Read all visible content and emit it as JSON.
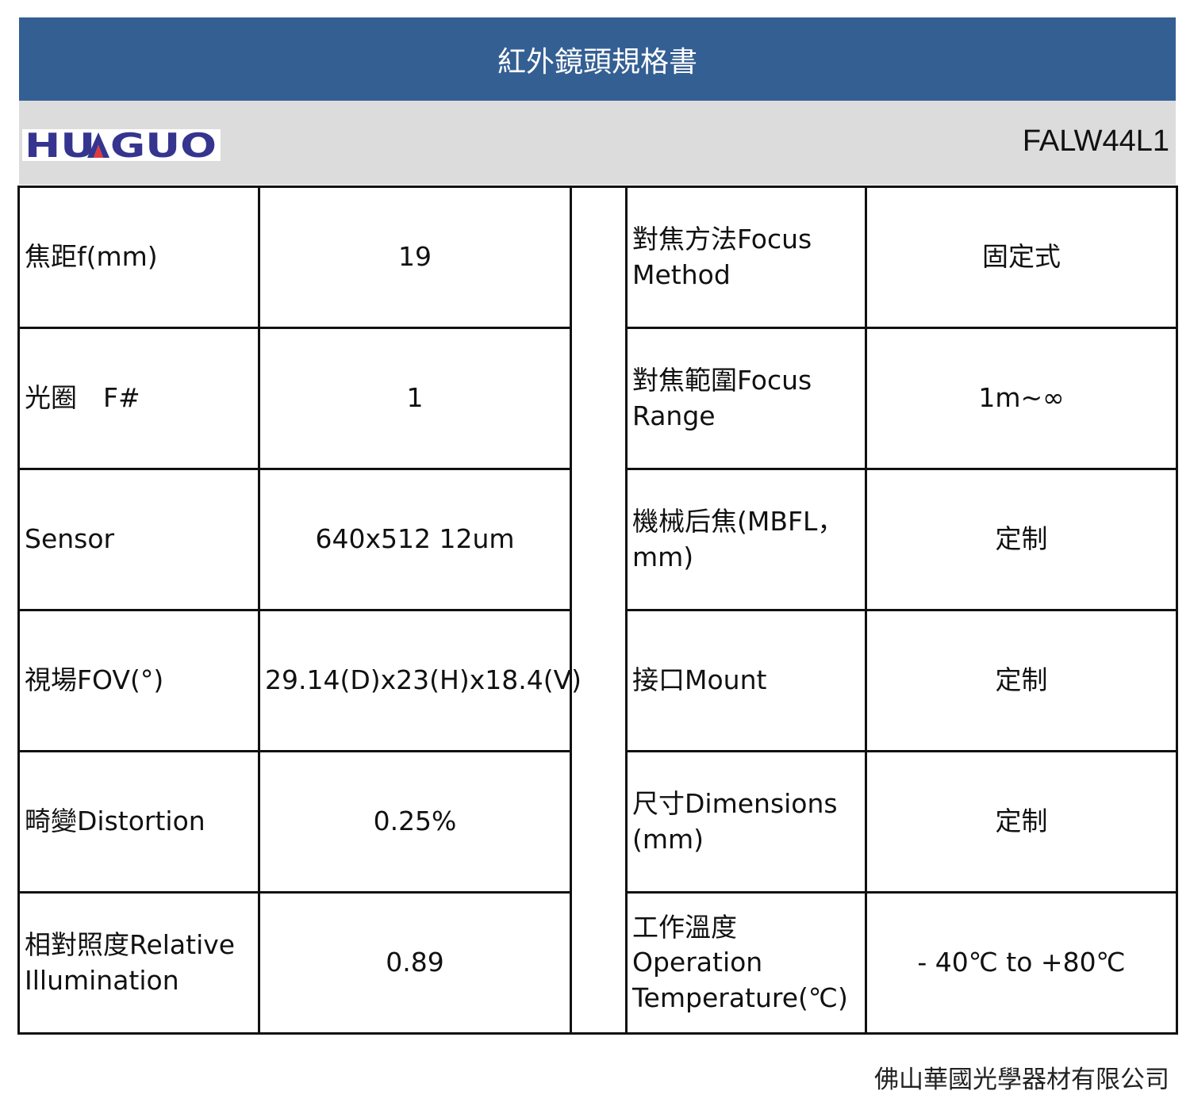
{
  "header": {
    "title": "紅外鏡頭規格書",
    "logo_text": "HUAGUO",
    "model": "FALW44L1"
  },
  "colors": {
    "title_bar": "#345f93",
    "band": "#dcdcdc",
    "logo_blue": "#35358f",
    "logo_red": "#e23a3a"
  },
  "rows": [
    {
      "left_label": "焦距f(mm)",
      "left_value": "19",
      "right_label": "對焦方法Focus Method",
      "right_value": "固定式"
    },
    {
      "left_label": "光圈　F#",
      "left_value": "1",
      "right_label": "對焦範圍Focus Range",
      "right_value": "1m~∞"
    },
    {
      "left_label": "Sensor",
      "left_value": "640x512  12um",
      "right_label": "機械后焦(MBFL，mm)",
      "right_value": "定制"
    },
    {
      "left_label": "視場FOV(°)",
      "left_value": "29.14(D)x23(H)x18.4(V)",
      "right_label": "接口Mount",
      "right_value": "定制"
    },
    {
      "left_label": "畸變Distortion",
      "left_value": "0.25%",
      "right_label": "尺寸Dimensions (mm)",
      "right_value": "定制"
    },
    {
      "left_label": "相對照度Relative Illumination",
      "left_value": "0.89",
      "right_label": "工作溫度 Operation Temperature(℃)",
      "right_value": "- 40℃ to +80℃"
    }
  ],
  "footer": {
    "company": "佛山華國光學器材有限公司"
  }
}
